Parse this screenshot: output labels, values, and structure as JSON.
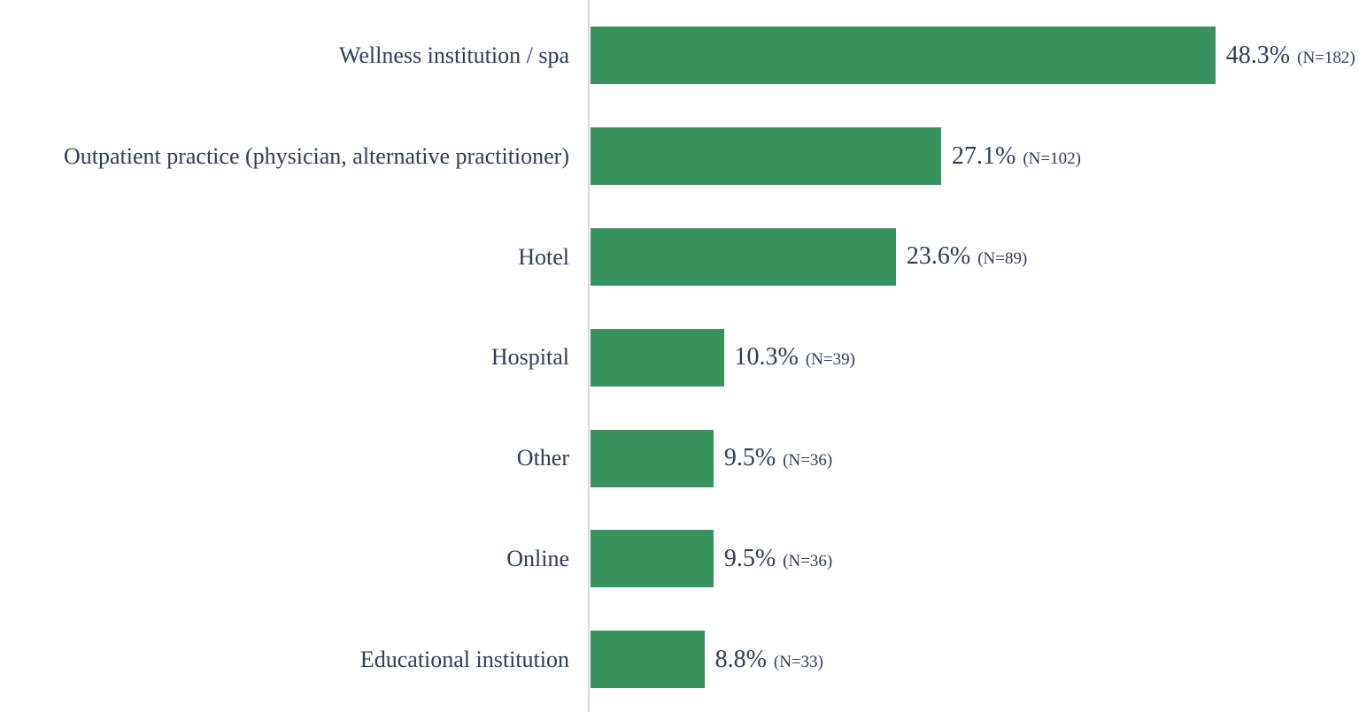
{
  "figure": {
    "background": "#ffffff"
  },
  "chart_data": {
    "type": "bar",
    "orientation": "horizontal",
    "title": "",
    "xlabel": "",
    "ylabel": "",
    "grid": false,
    "legend": false,
    "categories": [
      "Wellness institution / spa",
      "Outpatient practice (physician, alternative practitioner)",
      "Hotel",
      "Hospital",
      "Other",
      "Online",
      "Educational institution"
    ],
    "values": [
      48.3,
      27.1,
      23.6,
      10.3,
      9.5,
      9.5,
      8.8
    ],
    "counts": [
      182,
      102,
      89,
      39,
      36,
      36,
      33
    ],
    "value_labels": [
      "48.3%",
      "27.1%",
      "23.6%",
      "10.3%",
      "9.5%",
      "9.5%",
      "8.8%"
    ],
    "count_labels": [
      "(N=182)",
      "(N=102)",
      "(N=89)",
      "(N=39)",
      "(N=36)",
      "(N=36)",
      "(N=33)"
    ],
    "xlim": [
      0,
      59.4
    ],
    "colors": {
      "bar": "#39925E",
      "text": "#2E3C58",
      "axis_line": "#D8D8D8"
    }
  }
}
